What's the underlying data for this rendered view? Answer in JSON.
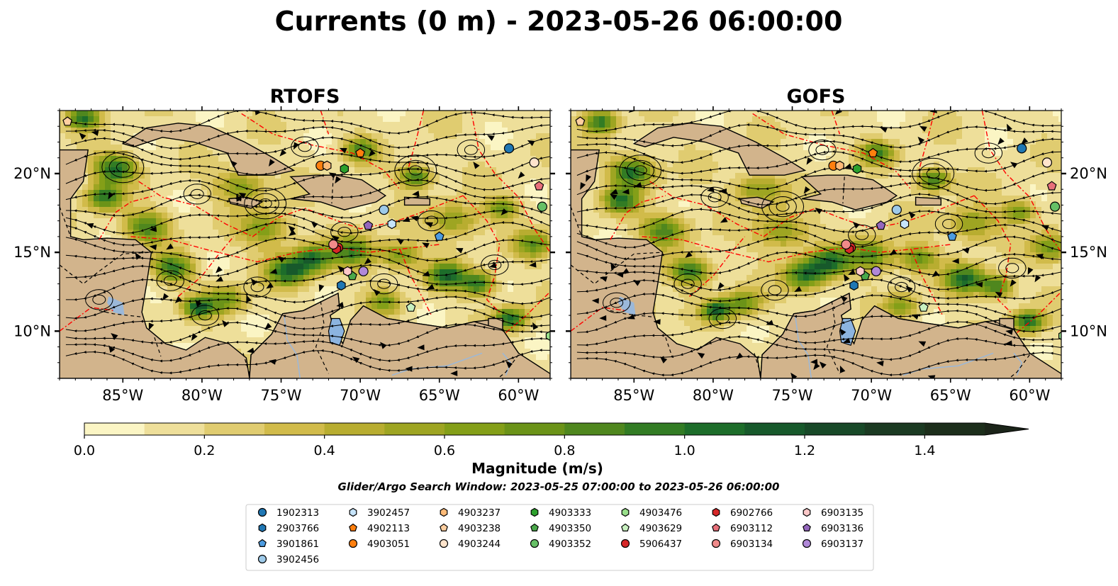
{
  "figure": {
    "title": "Currents (0 m) - 2023-05-26 06:00:00",
    "search_window": "Glider/Argo Search Window: 2023-05-25 07:00:00 to 2023-05-26 06:00:00"
  },
  "chart_data": {
    "type": "map",
    "region": {
      "lon": [
        -89.0,
        -58.0
      ],
      "lat": [
        7.0,
        24.0
      ]
    },
    "panels": [
      {
        "title": "RTOFS",
        "model": "RTOFS"
      },
      {
        "title": "GOFS",
        "model": "GOFS"
      }
    ],
    "x_ticks": [
      {
        "lon": -85,
        "label": "85°W"
      },
      {
        "lon": -80,
        "label": "80°W"
      },
      {
        "lon": -75,
        "label": "75°W"
      },
      {
        "lon": -70,
        "label": "70°W"
      },
      {
        "lon": -65,
        "label": "65°W"
      },
      {
        "lon": -60,
        "label": "60°W"
      }
    ],
    "y_ticks": [
      {
        "lat": 10,
        "label": "10°N"
      },
      {
        "lat": 15,
        "label": "15°N"
      },
      {
        "lat": 20,
        "label": "20°N"
      }
    ],
    "colorbar": {
      "label": "Magnitude (m/s)",
      "range": [
        0.0,
        1.5
      ],
      "extend": "max",
      "ticks": [
        {
          "value": 0.0,
          "label": "0.0"
        },
        {
          "value": 0.2,
          "label": "0.2"
        },
        {
          "value": 0.4,
          "label": "0.4"
        },
        {
          "value": 0.6,
          "label": "0.6"
        },
        {
          "value": 0.8,
          "label": "0.8"
        },
        {
          "value": 1.0,
          "label": "1.0"
        },
        {
          "value": 1.2,
          "label": "1.2"
        },
        {
          "value": 1.4,
          "label": "1.4"
        }
      ],
      "colors": [
        "#fbf5c4",
        "#eedf9a",
        "#e0cc70",
        "#d1bb4a",
        "#b8ad30",
        "#9ea522",
        "#849f18",
        "#6b9318",
        "#4f871e",
        "#327c24",
        "#1d6d2a",
        "#17592b",
        "#184928",
        "#1b3a22",
        "#1c2e1b"
      ],
      "extend_color": "#1b2419"
    },
    "floats": [
      {
        "id": "1902313",
        "color": "#1f77b4",
        "marker": "circle",
        "lon": -60.6,
        "lat": 21.6
      },
      {
        "id": "2903766",
        "color": "#1f77b4",
        "marker": "hexagon",
        "lon": -71.2,
        "lat": 12.9
      },
      {
        "id": "3901861",
        "color": "#4c9be0",
        "marker": "pentagon",
        "lon": -65.0,
        "lat": 16.0
      },
      {
        "id": "3902456",
        "color": "#9ecae9",
        "marker": "circle",
        "lon": -68.5,
        "lat": 17.7
      },
      {
        "id": "3902457",
        "color": "#c6e4fb",
        "marker": "hexagon",
        "lon": -68.0,
        "lat": 16.8
      },
      {
        "id": "4902113",
        "color": "#ff7f0e",
        "marker": "pentagon",
        "lon": -70.0,
        "lat": 21.3
      },
      {
        "id": "4903051",
        "color": "#ff7f0e",
        "marker": "circle",
        "lon": -72.5,
        "lat": 20.5
      },
      {
        "id": "4903237",
        "color": "#ffbb78",
        "marker": "hexagon",
        "lon": -72.1,
        "lat": 20.5
      },
      {
        "id": "4903238",
        "color": "#ffcfa0",
        "marker": "pentagon",
        "lon": -88.5,
        "lat": 23.3
      },
      {
        "id": "4903244",
        "color": "#ffe4cc",
        "marker": "circle",
        "lon": -59.0,
        "lat": 20.7
      },
      {
        "id": "4903333",
        "color": "#2ca02c",
        "marker": "hexagon",
        "lon": -71.0,
        "lat": 20.3
      },
      {
        "id": "4903350",
        "color": "#4aa84a",
        "marker": "pentagon",
        "lon": -70.5,
        "lat": 13.5
      },
      {
        "id": "4903352",
        "color": "#66c066",
        "marker": "circle",
        "lon": -58.5,
        "lat": 17.9
      },
      {
        "id": "4903476",
        "color": "#98df8a",
        "marker": "hexagon",
        "lon": -58.0,
        "lat": 9.7
      },
      {
        "id": "4903629",
        "color": "#c8f0c0",
        "marker": "pentagon",
        "lon": -66.8,
        "lat": 11.5
      },
      {
        "id": "5906437",
        "color": "#d62728",
        "marker": "circle",
        "lon": -71.4,
        "lat": 15.3
      },
      {
        "id": "6902766",
        "color": "#d62728",
        "marker": "hexagon",
        "lon": -71.5,
        "lat": 15.2
      },
      {
        "id": "6903112",
        "color": "#e8707a",
        "marker": "pentagon",
        "lon": -58.7,
        "lat": 19.2
      },
      {
        "id": "6903134",
        "color": "#f08a8a",
        "marker": "circle",
        "lon": -71.7,
        "lat": 15.5
      },
      {
        "id": "6903135",
        "color": "#fcc8c8",
        "marker": "hexagon",
        "lon": -70.8,
        "lat": 13.8
      },
      {
        "id": "6903136",
        "color": "#9467bd",
        "marker": "pentagon",
        "lon": -69.5,
        "lat": 16.7
      },
      {
        "id": "6903137",
        "color": "#b088d8",
        "marker": "circle",
        "lon": -69.8,
        "lat": 13.8
      }
    ],
    "colors": {
      "land": "#d2b48c",
      "inland_water": "#9bb8d9",
      "eez_boundary": "#ff0000",
      "border": "#000000"
    }
  }
}
